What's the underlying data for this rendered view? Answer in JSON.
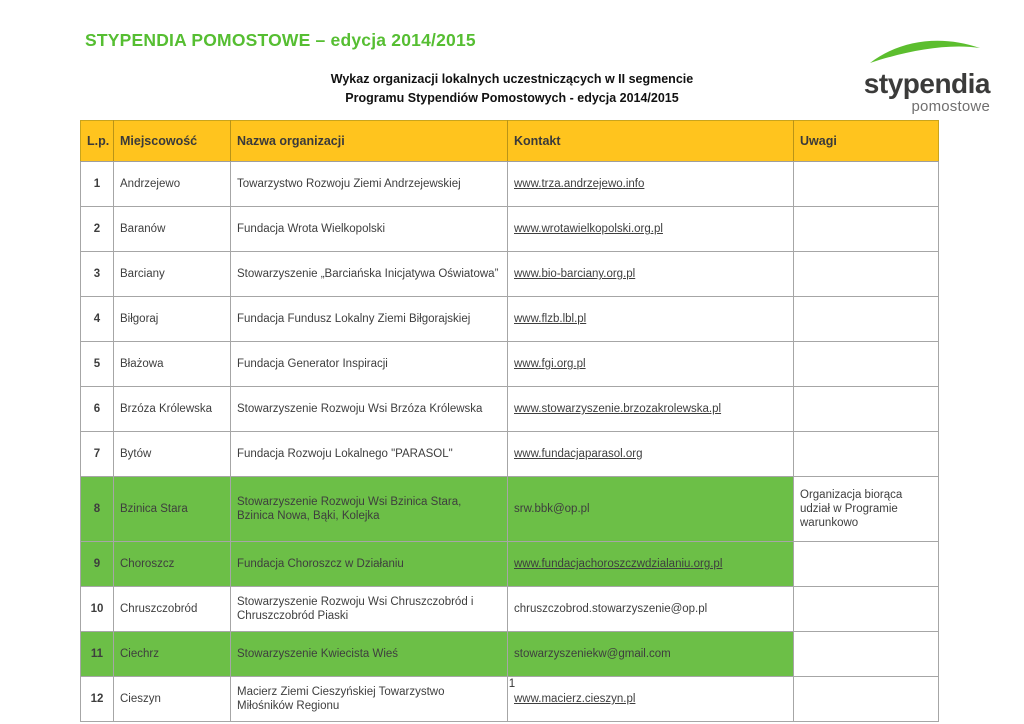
{
  "page": {
    "title": "STYPENDIA POMOSTOWE – edycja 2014/2015",
    "subtitle_line1": "Wykaz organizacji lokalnych uczestniczących w  II segmencie",
    "subtitle_line2": "Programu Stypendiów Pomostowych - edycja 2014/2015",
    "page_number": "1"
  },
  "logo": {
    "brand": "stypendia",
    "sub": "pomostowe",
    "swoosh_icon": "green-arc"
  },
  "colors": {
    "title_green": "#56be32",
    "header_yellow": "#ffc41e",
    "row_green": "#6cbf47",
    "swoosh_green": "#5cbe2e"
  },
  "table": {
    "columns": [
      {
        "key": "lp",
        "label": "L.p."
      },
      {
        "key": "miejscowosc",
        "label": "Miejscowość"
      },
      {
        "key": "nazwa",
        "label": "Nazwa organizacji"
      },
      {
        "key": "kontakt",
        "label": "Kontakt"
      },
      {
        "key": "uwagi",
        "label": "Uwagi"
      }
    ],
    "rows": [
      {
        "lp": "1",
        "miejscowosc": "Andrzejewo",
        "nazwa": "Towarzystwo Rozwoju Ziemi Andrzejewskiej",
        "kontakt": "www.trza.andrzejewo.info",
        "kontakt_link": true,
        "uwagi": "",
        "highlight": false
      },
      {
        "lp": "2",
        "miejscowosc": "Baranów",
        "nazwa": "Fundacja Wrota Wielkopolski",
        "kontakt": "www.wrotawielkopolski.org.pl",
        "kontakt_link": true,
        "uwagi": "",
        "highlight": false
      },
      {
        "lp": "3",
        "miejscowosc": "Barciany",
        "nazwa": "Stowarzyszenie „Barciańska Inicjatywa Oświatowa”",
        "kontakt": "www.bio-barciany.org.pl",
        "kontakt_link": true,
        "uwagi": "",
        "highlight": false
      },
      {
        "lp": "4",
        "miejscowosc": "Biłgoraj",
        "nazwa": "Fundacja Fundusz Lokalny Ziemi Biłgorajskiej",
        "kontakt": "www.flzb.lbl.pl",
        "kontakt_link": true,
        "uwagi": "",
        "highlight": false
      },
      {
        "lp": "5",
        "miejscowosc": "Błażowa",
        "nazwa": "Fundacja Generator Inspiracji",
        "kontakt": "www.fgi.org.pl",
        "kontakt_link": true,
        "uwagi": "",
        "highlight": false
      },
      {
        "lp": "6",
        "miejscowosc": "Brzóza Królewska",
        "nazwa": "Stowarzyszenie Rozwoju Wsi Brzóza Królewska",
        "kontakt": "www.stowarzyszenie.brzozakrolewska.pl",
        "kontakt_link": true,
        "uwagi": "",
        "highlight": false
      },
      {
        "lp": "7",
        "miejscowosc": "Bytów",
        "nazwa": "Fundacja Rozwoju Lokalnego \"PARASOL\"",
        "kontakt": "www.fundacjaparasol.org",
        "kontakt_link": true,
        "uwagi": "",
        "highlight": false
      },
      {
        "lp": "8",
        "miejscowosc": "Bzinica Stara",
        "nazwa": "Stowarzyszenie Rozwoju Wsi Bzinica Stara, Bzinica Nowa, Bąki, Kolejka",
        "kontakt": "srw.bbk@op.pl",
        "kontakt_link": false,
        "uwagi": "Organizacja biorąca udział w Programie warunkowo",
        "highlight": true,
        "tall": true
      },
      {
        "lp": "9",
        "miejscowosc": "Choroszcz",
        "nazwa": "Fundacja Choroszcz w Działaniu",
        "kontakt": "www.fundacjachoroszczwdzialaniu.org.pl",
        "kontakt_link": true,
        "uwagi": "",
        "highlight": true
      },
      {
        "lp": "10",
        "miejscowosc": "Chruszczobród",
        "nazwa": "Stowarzyszenie Rozwoju Wsi Chruszczobród i Chruszczobród Piaski",
        "kontakt": "chruszczobrod.stowarzyszenie@op.pl",
        "kontakt_link": false,
        "uwagi": "",
        "highlight": false
      },
      {
        "lp": "11",
        "miejscowosc": "Ciechrz",
        "nazwa": "Stowarzyszenie Kwiecista Wieś",
        "kontakt": "stowarzyszeniekw@gmail.com",
        "kontakt_link": false,
        "uwagi": "",
        "highlight": true
      },
      {
        "lp": "12",
        "miejscowosc": "Cieszyn",
        "nazwa": "Macierz Ziemi Cieszyńskiej Towarzystwo Miłośników Regionu",
        "kontakt": "www.macierz.cieszyn.pl",
        "kontakt_link": true,
        "uwagi": "",
        "highlight": false
      }
    ]
  }
}
